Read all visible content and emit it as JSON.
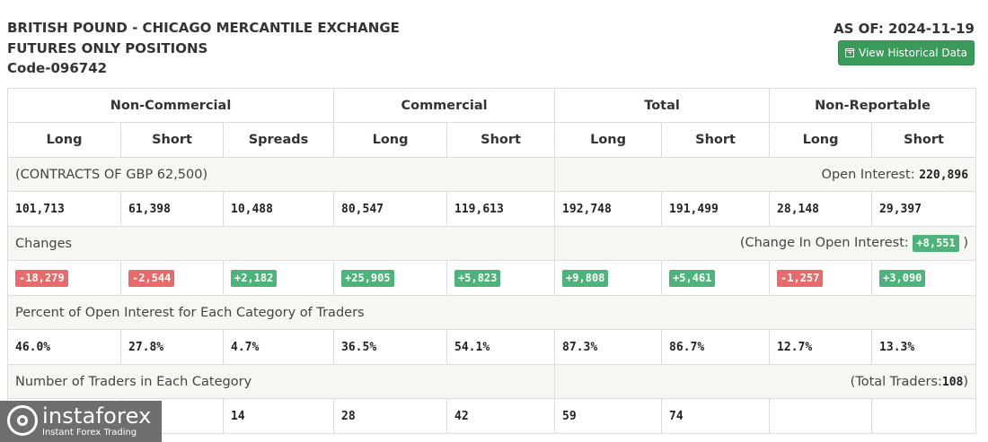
{
  "header": {
    "title_line1": "BRITISH POUND - CHICAGO MERCANTILE EXCHANGE",
    "title_line2": "FUTURES ONLY POSITIONS",
    "code": "Code-096742",
    "as_of": "AS OF: 2024-11-19",
    "history_button": "View Historical Data",
    "history_icon": "calendar-plus-icon"
  },
  "groups": [
    "Non-Commercial",
    "Commercial",
    "Total",
    "Non-Reportable"
  ],
  "subheads": [
    "Long",
    "Short",
    "Spreads",
    "Long",
    "Short",
    "Long",
    "Short",
    "Long",
    "Short"
  ],
  "contracts": {
    "label": "(CONTRACTS OF GBP 62,500)",
    "oi_label": "Open Interest:",
    "oi_value": "220,896"
  },
  "positions": [
    "101,713",
    "61,398",
    "10,488",
    "80,547",
    "119,613",
    "192,748",
    "191,499",
    "28,148",
    "29,397"
  ],
  "changes": {
    "label": "Changes",
    "oi_label": "(Change In Open Interest:",
    "oi_value": "+8,551",
    "oi_close": ")",
    "values": [
      "-18,279",
      "-2,544",
      "+2,182",
      "+25,905",
      "+5,823",
      "+9,808",
      "+5,461",
      "-1,257",
      "+3,090"
    ]
  },
  "percent": {
    "label": "Percent of Open Interest for Each Category of Traders",
    "values": [
      "46.0%",
      "27.8%",
      "4.7%",
      "36.5%",
      "54.1%",
      "87.3%",
      "86.7%",
      "12.7%",
      "13.3%"
    ]
  },
  "traders": {
    "label": "Number of Traders in Each Category",
    "total_label": "(Total Traders:",
    "total_value": "108",
    "total_close": ")",
    "values": [
      "",
      "",
      "14",
      "28",
      "42",
      "59",
      "74",
      "",
      ""
    ]
  },
  "colors": {
    "negative": "#e86b6b",
    "positive": "#4db37a",
    "button": "#3a9a5a"
  },
  "watermark": {
    "name": "instaforex",
    "tagline": "Instant Forex Trading"
  }
}
